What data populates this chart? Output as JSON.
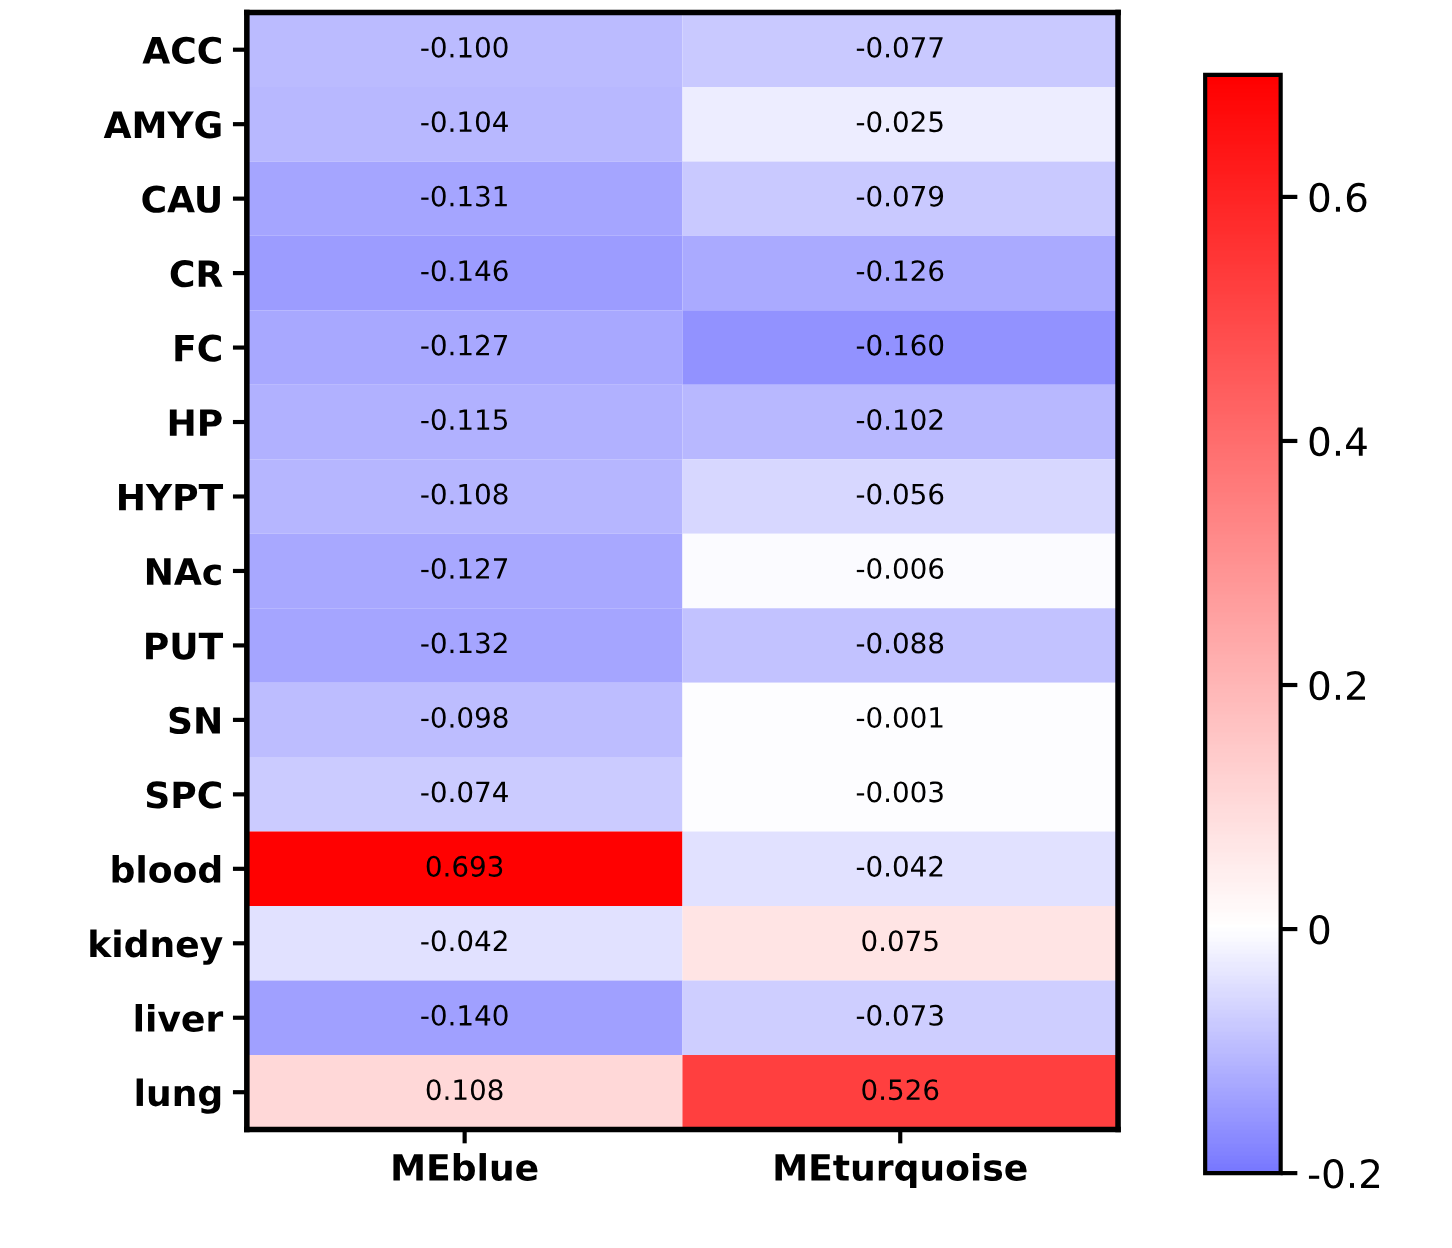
{
  "chart_data": {
    "type": "heatmap",
    "categories": [
      "MEblue",
      "MEturquoise"
    ],
    "y_categories": [
      "ACC",
      "AMYG",
      "CAU",
      "CR",
      "FC",
      "HP",
      "HYPT",
      "NAc",
      "PUT",
      "SN",
      "SPC",
      "blood",
      "kidney",
      "liver",
      "lung"
    ],
    "cells": [
      [
        -0.1,
        -0.077
      ],
      [
        -0.104,
        -0.025
      ],
      [
        -0.131,
        -0.079
      ],
      [
        -0.146,
        -0.126
      ],
      [
        -0.127,
        -0.16
      ],
      [
        -0.115,
        -0.102
      ],
      [
        -0.108,
        -0.056
      ],
      [
        -0.127,
        -0.006
      ],
      [
        -0.132,
        -0.088
      ],
      [
        -0.098,
        -0.001
      ],
      [
        -0.074,
        -0.003
      ],
      [
        0.693,
        -0.042
      ],
      [
        -0.042,
        0.075
      ],
      [
        -0.14,
        -0.073
      ],
      [
        0.108,
        0.526
      ]
    ],
    "cell_labels": [
      [
        "-0.100",
        "-0.077"
      ],
      [
        "-0.104",
        "-0.025"
      ],
      [
        "-0.131",
        "-0.079"
      ],
      [
        "-0.146",
        "-0.126"
      ],
      [
        "-0.127",
        "-0.160"
      ],
      [
        "-0.115",
        "-0.102"
      ],
      [
        "-0.108",
        "-0.056"
      ],
      [
        "-0.127",
        "-0.006"
      ],
      [
        "-0.132",
        "-0.088"
      ],
      [
        "-0.098",
        "-0.001"
      ],
      [
        "-0.074",
        "-0.003"
      ],
      [
        "0.693",
        "-0.042"
      ],
      [
        "-0.042",
        "0.075"
      ],
      [
        "-0.140",
        "-0.073"
      ],
      [
        "0.108",
        "0.526"
      ]
    ],
    "clim": [
      -0.2,
      0.7
    ],
    "cticks": [
      {
        "value": -0.2,
        "label": "-0.2"
      },
      0,
      0.2,
      0.4,
      0.6
    ],
    "colors": [
      "#7878ff",
      "#ffffff",
      "#ff0000"
    ]
  }
}
